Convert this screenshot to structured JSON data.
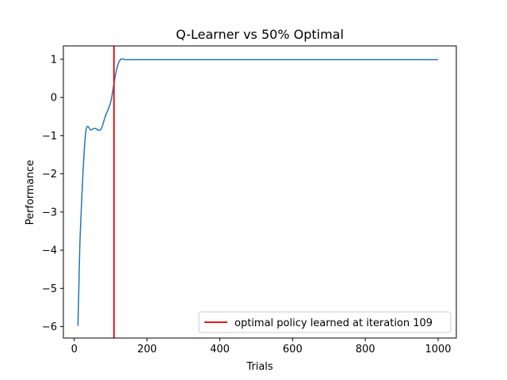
{
  "chart_data": {
    "type": "line",
    "title": "Q-Learner vs 50% Optimal",
    "xlabel": "Trials",
    "ylabel": "Performance",
    "xlim": [
      -30,
      1050
    ],
    "ylim": [
      -6.3,
      1.35
    ],
    "xticks": [
      0,
      200,
      400,
      600,
      800,
      1000
    ],
    "xtick_labels": [
      "0",
      "200",
      "400",
      "600",
      "800",
      "1000"
    ],
    "yticks": [
      1,
      0,
      -1,
      -2,
      -3,
      -4,
      -5,
      -6
    ],
    "ytick_labels": [
      "1",
      "0",
      "−1",
      "−2",
      "−3",
      "−4",
      "−5",
      "−6"
    ],
    "grid": false,
    "legend_position": "lower-right",
    "colors": {
      "series": "#1f77b4",
      "vline": "#e31a1c"
    },
    "series": [
      {
        "x": [
          10,
          12,
          15,
          18,
          21,
          24,
          27,
          30,
          33,
          36,
          39,
          42,
          45,
          50,
          55,
          60,
          65,
          70,
          75,
          80,
          85,
          90,
          95,
          100,
          104,
          108,
          112,
          116,
          120,
          124,
          128,
          132,
          136,
          140,
          150,
          200,
          300,
          400,
          500,
          600,
          700,
          800,
          900,
          1000
        ],
        "values": [
          -5.98,
          -5.2,
          -3.95,
          -3.2,
          -2.55,
          -1.95,
          -1.45,
          -1.05,
          -0.82,
          -0.76,
          -0.77,
          -0.82,
          -0.85,
          -0.83,
          -0.81,
          -0.82,
          -0.85,
          -0.86,
          -0.8,
          -0.66,
          -0.5,
          -0.38,
          -0.27,
          -0.12,
          0.07,
          0.3,
          0.53,
          0.72,
          0.86,
          0.95,
          1.0,
          1.01,
          1.0,
          0.99,
          0.99,
          0.99,
          0.99,
          0.99,
          0.99,
          0.99,
          0.99,
          0.99,
          0.99,
          0.99
        ]
      }
    ],
    "vline": {
      "x": 109,
      "label": "optimal policy learned at iteration 109"
    }
  }
}
